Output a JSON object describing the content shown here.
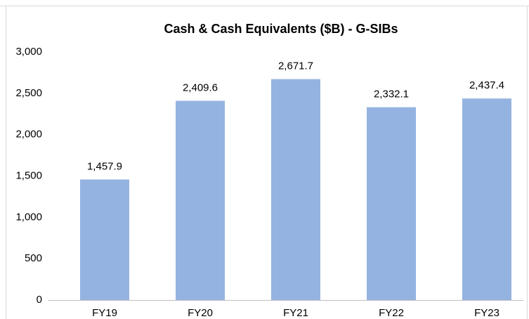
{
  "chart_data": {
    "type": "bar",
    "title": "Cash & Cash Equivalents ($B) - G-SIBs",
    "categories": [
      "FY19",
      "FY20",
      "FY21",
      "FY22",
      "FY23"
    ],
    "values": [
      1457.9,
      2409.6,
      2671.7,
      2332.1,
      2437.4
    ],
    "value_labels": [
      "1,457.9",
      "2,409.6",
      "2,671.7",
      "2,332.1",
      "2,437.4"
    ],
    "color": "#95b3e0",
    "ylim": [
      0,
      3000
    ],
    "yticks": [
      0,
      500,
      {
        "value": 1000,
        "label": "1,000"
      },
      {
        "value": 1500,
        "label": "1,500"
      },
      {
        "value": 2000,
        "label": "2,000"
      },
      {
        "value": 2500,
        "label": "2,500"
      },
      {
        "value": 3000,
        "label": "3,000"
      }
    ],
    "grid": false
  }
}
